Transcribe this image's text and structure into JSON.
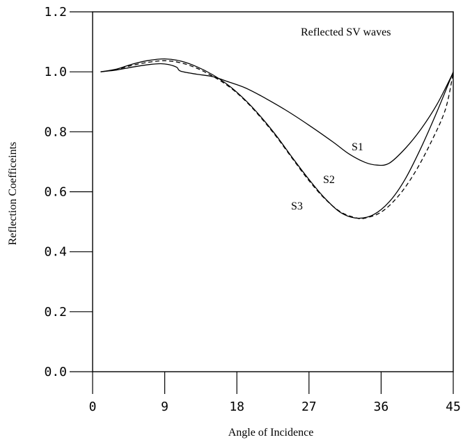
{
  "chart_data": {
    "type": "line",
    "xlabel": "Angle of Incidence",
    "ylabel": "Reflection Coefficeints",
    "xlim": [
      0,
      45
    ],
    "ylim": [
      0.0,
      1.2
    ],
    "xticks": [
      "0",
      "9",
      "18",
      "27",
      "36",
      "45"
    ],
    "yticks": [
      "0.0",
      "0.2",
      "0.4",
      "0.6",
      "0.8",
      "1.0",
      "1.2"
    ],
    "grid": false,
    "annotations": [
      "Reflected SV waves",
      "S1",
      "S2",
      "S3"
    ],
    "series": [
      {
        "name": "S1",
        "style": "solid",
        "x": [
          1,
          3,
          5,
          7,
          8.5,
          9.5,
          10.5,
          11,
          13,
          15,
          17,
          19,
          21,
          24,
          27,
          30,
          32,
          34,
          35.5,
          37,
          39,
          41,
          43,
          45
        ],
        "y": [
          1.0,
          1.006,
          1.016,
          1.024,
          1.027,
          1.024,
          1.015,
          1.002,
          0.992,
          0.984,
          0.966,
          0.947,
          0.92,
          0.874,
          0.822,
          0.766,
          0.726,
          0.698,
          0.689,
          0.695,
          0.744,
          0.81,
          0.893,
          0.998
        ]
      },
      {
        "name": "S2",
        "style": "dashed",
        "x": [
          1,
          3,
          5,
          7,
          9,
          11,
          13,
          15,
          17,
          19,
          21,
          23,
          25,
          27,
          29,
          31,
          33,
          34,
          36,
          38,
          40,
          42,
          44,
          45
        ],
        "y": [
          1.0,
          1.008,
          1.022,
          1.032,
          1.037,
          1.03,
          1.012,
          0.985,
          0.951,
          0.905,
          0.847,
          0.781,
          0.708,
          0.637,
          0.576,
          0.532,
          0.512,
          0.512,
          0.532,
          0.581,
          0.655,
          0.753,
          0.873,
          0.998
        ]
      },
      {
        "name": "S3",
        "style": "solid",
        "x": [
          1,
          3,
          5,
          7,
          9,
          11,
          13,
          15,
          17,
          19,
          21,
          23,
          25,
          27,
          29,
          31,
          33,
          35,
          37,
          39,
          41,
          43,
          45
        ],
        "y": [
          1.0,
          1.009,
          1.026,
          1.038,
          1.043,
          1.036,
          1.017,
          0.99,
          0.954,
          0.907,
          0.85,
          0.784,
          0.711,
          0.641,
          0.578,
          0.53,
          0.512,
          0.523,
          0.566,
          0.642,
          0.748,
          0.869,
          1.0
        ]
      }
    ]
  }
}
